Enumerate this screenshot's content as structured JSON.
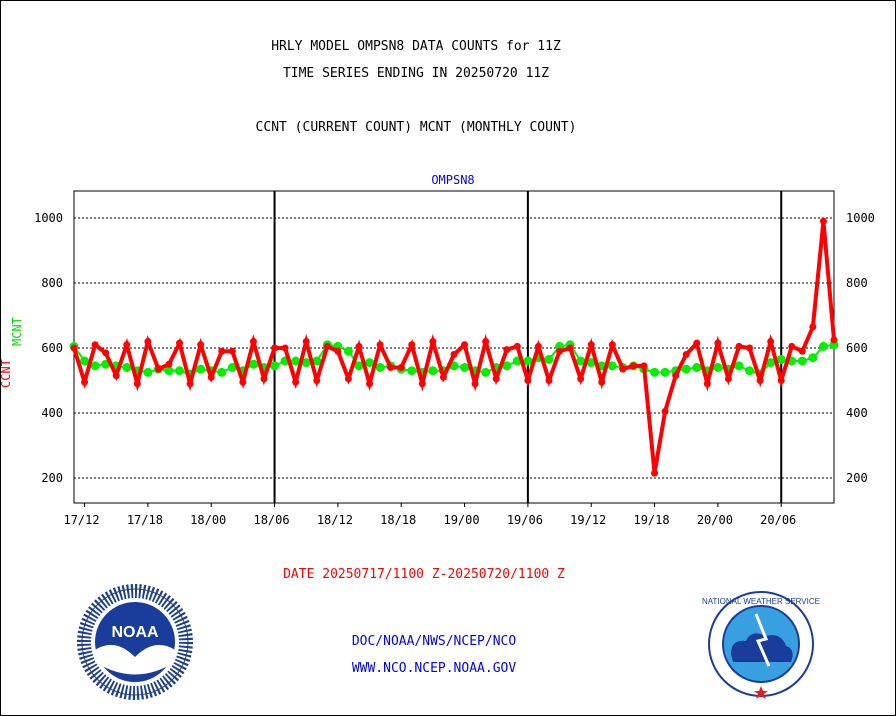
{
  "chart_data": {
    "type": "line",
    "title": [
      "HRLY MODEL OMPSN8 DATA COUNTS for 11Z",
      "TIME SERIES ENDING IN 20250720 11Z"
    ],
    "subtitle": "CCNT (CURRENT COUNT) MCNT (MONTHLY COUNT)",
    "plot_label": "OMPSN8",
    "ylabel_ccnt": "CCNT",
    "ylabel_mcnt": "MCNT",
    "xlabel": "DATE 20250717/1100 Z-20250720/1100 Z",
    "ylim": [
      130,
      1090
    ],
    "yticks": [
      200,
      400,
      600,
      800,
      1000
    ],
    "x_hours_range": [
      0,
      72
    ],
    "xtick_labels": [
      {
        "h": 1,
        "label": "17/12"
      },
      {
        "h": 7,
        "label": "17/18"
      },
      {
        "h": 13,
        "label": "18/00"
      },
      {
        "h": 19,
        "label": "18/06"
      },
      {
        "h": 25,
        "label": "18/12"
      },
      {
        "h": 31,
        "label": "18/18"
      },
      {
        "h": 37,
        "label": "19/00"
      },
      {
        "h": 43,
        "label": "19/06"
      },
      {
        "h": 49,
        "label": "19/12"
      },
      {
        "h": 55,
        "label": "19/18"
      },
      {
        "h": 61,
        "label": "20/00"
      },
      {
        "h": 67,
        "label": "20/06"
      }
    ],
    "day_lines_hours": [
      19,
      43,
      67
    ],
    "series": [
      {
        "name": "CCNT",
        "color": "#ff0000",
        "values": [
          600,
          495,
          610,
          585,
          515,
          610,
          490,
          620,
          535,
          550,
          615,
          490,
          610,
          510,
          590,
          590,
          495,
          620,
          505,
          600,
          600,
          495,
          620,
          500,
          605,
          590,
          505,
          605,
          490,
          610,
          540,
          540,
          610,
          490,
          620,
          510,
          580,
          610,
          490,
          620,
          505,
          595,
          605,
          500,
          605,
          500,
          590,
          600,
          505,
          610,
          495,
          610,
          535,
          545,
          545,
          215,
          405,
          515,
          580,
          615,
          490,
          615,
          505,
          605,
          600,
          500,
          620,
          500,
          605,
          590,
          665,
          990,
          625
        ]
      },
      {
        "name": "MCNT",
        "color": "#00ee00",
        "values": [
          605,
          560,
          545,
          550,
          545,
          540,
          530,
          525,
          535,
          530,
          530,
          520,
          535,
          530,
          525,
          540,
          530,
          550,
          540,
          545,
          560,
          560,
          555,
          560,
          610,
          605,
          590,
          545,
          555,
          540,
          545,
          535,
          530,
          525,
          530,
          530,
          545,
          540,
          530,
          525,
          540,
          545,
          560,
          560,
          570,
          565,
          605,
          610,
          560,
          555,
          545,
          545,
          540,
          545,
          535,
          525,
          525,
          530,
          535,
          540,
          530,
          540,
          535,
          545,
          530,
          520,
          555,
          565,
          560,
          560,
          570,
          605,
          610
        ]
      }
    ]
  },
  "footer": {
    "line1": "DOC/NOAA/NWS/NCEP/NCO",
    "line2": "WWW.NCO.NCEP.NOAA.GOV"
  },
  "logos": {
    "noaa": "NOAA",
    "nws": "NATIONAL WEATHER SERVICE"
  }
}
